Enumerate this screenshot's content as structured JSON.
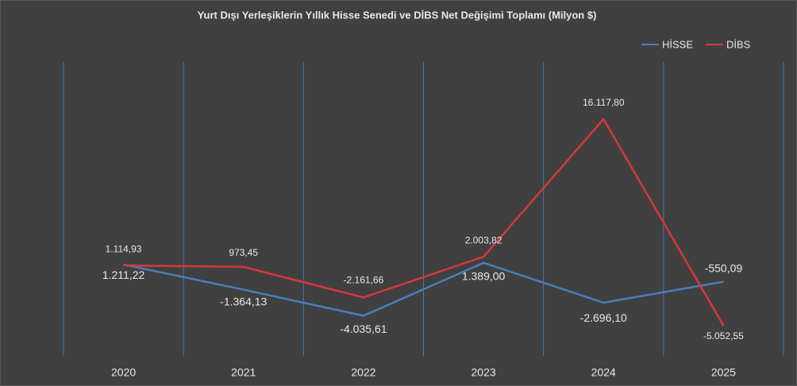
{
  "chart_data": {
    "type": "line",
    "title": "Yurt Dışı Yerleşiklerin Yıllık Hisse Senedi ve DİBS Net Değişimi Toplamı (Milyon $)",
    "categories": [
      "2020",
      "2021",
      "2022",
      "2023",
      "2024",
      "2025"
    ],
    "series": [
      {
        "name": "HİSSE",
        "color": "#4a7ebb",
        "values": [
          1211.22,
          -1364.13,
          -4035.61,
          1389.0,
          -2696.1,
          -550.09
        ],
        "value_labels": [
          "1.211,22",
          "-1.364,13",
          "-4.035,61",
          "1.389,00",
          "-2.696,10",
          "-550,09"
        ]
      },
      {
        "name": "DİBS",
        "color": "#d6383c",
        "values": [
          1114.93,
          973.45,
          -2161.66,
          2003.82,
          16117.8,
          -5052.55
        ],
        "value_labels": [
          "1.114,93",
          "973,45",
          "-2.161,66",
          "2.003,82",
          "16.117,80",
          "-5.052,55"
        ]
      }
    ],
    "grid": true,
    "legend": "top-right"
  }
}
